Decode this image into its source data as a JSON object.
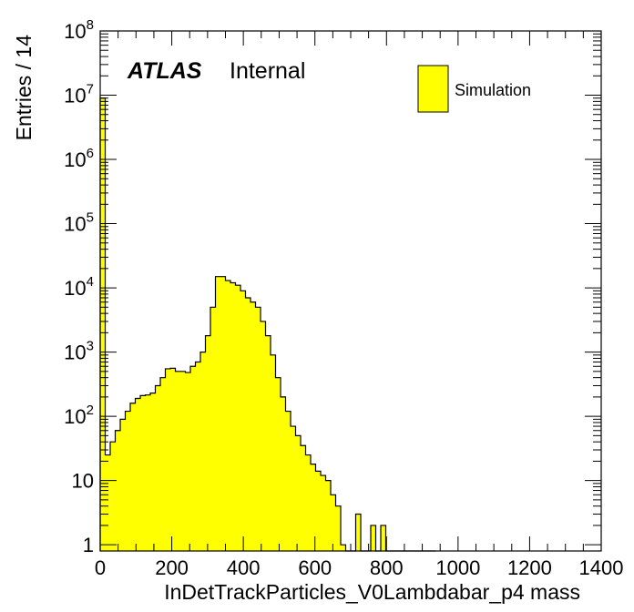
{
  "chart_data": {
    "type": "bar",
    "title": "",
    "xlabel": "InDetTrackParticles_V0Lambdabar_p4 mass",
    "ylabel": "Entries / 14",
    "xlim": [
      0,
      1400
    ],
    "ylim": [
      0.8,
      100000000
    ],
    "yscale": "log",
    "bin_width": 14,
    "x_ticks": [
      "0",
      "200",
      "400",
      "600",
      "800",
      "1000",
      "1200",
      "1400"
    ],
    "y_ticks": [
      {
        "base": "1",
        "exp": ""
      },
      {
        "base": "10",
        "exp": ""
      },
      {
        "base": "10",
        "exp": "2"
      },
      {
        "base": "10",
        "exp": "3"
      },
      {
        "base": "10",
        "exp": "4"
      },
      {
        "base": "10",
        "exp": "5"
      },
      {
        "base": "10",
        "exp": "6"
      },
      {
        "base": "10",
        "exp": "7"
      },
      {
        "base": "10",
        "exp": "8"
      }
    ],
    "atlas_label": "ATLAS",
    "atlas_sublabel": "Internal",
    "legend": {
      "entries": [
        {
          "name": "Simulation",
          "color": "#ffff00"
        }
      ],
      "placement": "top-right"
    },
    "fill_color": "#ffff00",
    "line_color": "#000000",
    "grid": false,
    "series": [
      {
        "name": "Simulation",
        "bin_low_edges": [
          0,
          14,
          28,
          42,
          56,
          70,
          84,
          98,
          112,
          126,
          140,
          154,
          168,
          182,
          196,
          210,
          224,
          238,
          252,
          266,
          280,
          294,
          308,
          322,
          336,
          350,
          364,
          378,
          392,
          406,
          420,
          434,
          448,
          462,
          476,
          490,
          504,
          518,
          532,
          546,
          560,
          574,
          588,
          602,
          616,
          630,
          644,
          658,
          672,
          686,
          700,
          714,
          728,
          742,
          756,
          770,
          784,
          798,
          812,
          826,
          840,
          854,
          868,
          882,
          896,
          910,
          924
        ],
        "values": [
          9000000,
          25,
          40,
          60,
          90,
          120,
          160,
          190,
          210,
          215,
          230,
          300,
          400,
          550,
          560,
          500,
          500,
          480,
          600,
          700,
          1000,
          1800,
          5000,
          15000,
          15000,
          13000,
          12000,
          11000,
          9000,
          7000,
          6000,
          5000,
          3000,
          1800,
          900,
          400,
          200,
          120,
          70,
          50,
          35,
          25,
          18,
          14,
          12,
          10,
          6,
          4,
          1,
          0,
          0,
          3,
          0,
          0,
          2,
          0,
          2,
          0,
          0,
          0,
          0,
          0,
          0,
          0,
          0,
          0,
          0
        ]
      }
    ]
  }
}
